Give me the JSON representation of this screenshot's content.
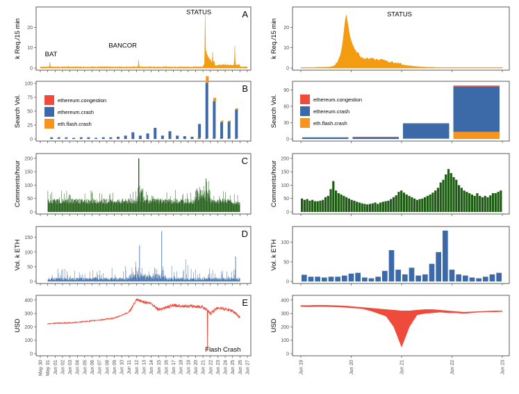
{
  "colors": {
    "status": "#F39C12",
    "congestion": "#EF4B3C",
    "crash": "#3C6AA8",
    "flash": "#F7941D",
    "comments": "#1E5C14",
    "volume": "#3C6AA8",
    "usd": "#EF4B3C",
    "frame": "#333333"
  },
  "left_x_ticks": [
    "May 30",
    "May 31",
    "Jun 01",
    "Jun 02",
    "Jun 03",
    "Jun 04",
    "Jun 05",
    "Jun 06",
    "Jun 07",
    "Jun 08",
    "Jun 09",
    "Jun 10",
    "Jun 11",
    "Jun 12",
    "Jun 13",
    "Jun 14",
    "Jun 15",
    "Jun 16",
    "Jun 17",
    "Jun 18",
    "Jun 19",
    "Jun 20",
    "Jun 21",
    "Jun 22",
    "Jun 23",
    "Jun 24",
    "Jun 25",
    "Jun 26",
    "Jun 27"
  ],
  "right_x_ticks": [
    "Jun 19",
    "Jun 20",
    "Jun 21",
    "Jun 22",
    "Jun 23"
  ],
  "chart_data": [
    {
      "id": "A-left",
      "type": "area",
      "panel_label": "A",
      "ylabel": "k Req./15 min",
      "ylim": [
        0,
        29
      ],
      "yticks": [
        0,
        10,
        20
      ],
      "x_range": [
        "May 30",
        "Jun 27"
      ],
      "spikes": [
        {
          "date": "May 31",
          "value": 3
        },
        {
          "date": "Jun 12",
          "value": 4
        },
        {
          "date": "Jun 21",
          "value": 25
        },
        {
          "date": "Jun 22",
          "value": 7
        },
        {
          "date": "Jun 25",
          "value": 10
        }
      ],
      "baseline": 0.4,
      "annotations": [
        {
          "text": "BAT",
          "date": "May 31",
          "value": 3
        },
        {
          "text": "BANCOR",
          "date": "Jun 12",
          "value": 4
        },
        {
          "text": "STATUS",
          "date": "Jun 21",
          "value": 25
        }
      ]
    },
    {
      "id": "A-right",
      "type": "area",
      "ylabel": "k Req./15 min",
      "ylim": [
        0,
        29
      ],
      "yticks": [
        0,
        10,
        20
      ],
      "x_range": [
        "Jun 19",
        "Jun 23"
      ],
      "series": [
        {
          "values": [
            0.3,
            0.3,
            0.3,
            0.3,
            0.4,
            0.4,
            0.5,
            0.5,
            1,
            3,
            9,
            27,
            15,
            9,
            7,
            5,
            4.5,
            5,
            4.5,
            4,
            4.5,
            3.5,
            3,
            2.5,
            2,
            1.5,
            1.2,
            1,
            0.8,
            0.6,
            0.5,
            0.4,
            0.4,
            0.3,
            0.3,
            0.3,
            0.3,
            0.3,
            0.3,
            0.3,
            0.3,
            0.3,
            0.3,
            0.3,
            0.3,
            0.3,
            0.3,
            0.3,
            0.3,
            0.3
          ]
        }
      ],
      "annotations": [
        {
          "text": "STATUS",
          "date": "Jun 20 09:00",
          "value": 25
        }
      ]
    },
    {
      "id": "B-left",
      "type": "bar",
      "panel_label": "B",
      "ylabel": "Search Vol.",
      "ylim": [
        0,
        100
      ],
      "yticks": [
        0,
        25,
        50,
        75,
        100
      ],
      "legend": [
        "ethereum.congestion",
        "ethereum.crash",
        "eth.flash.crash"
      ],
      "legend_position": "left",
      "x": [
        "May 31",
        "Jun 01",
        "Jun 02",
        "Jun 03",
        "Jun 04",
        "Jun 05",
        "Jun 06",
        "Jun 07",
        "Jun 08",
        "Jun 09",
        "Jun 10",
        "Jun 11",
        "Jun 12",
        "Jun 13",
        "Jun 14",
        "Jun 15",
        "Jun 16",
        "Jun 17",
        "Jun 18",
        "Jun 19",
        "Jun 20",
        "Jun 21",
        "Jun 22",
        "Jun 23",
        "Jun 24",
        "Jun 25"
      ],
      "series": [
        {
          "name": "ethereum.congestion",
          "values": [
            0,
            1,
            1,
            0,
            0,
            0,
            0,
            0,
            0,
            0,
            0,
            0,
            0,
            0,
            0,
            0,
            0,
            0,
            0,
            0,
            2,
            1,
            1,
            1,
            1,
            1
          ]
        },
        {
          "name": "ethereum.crash",
          "values": [
            3,
            2,
            2,
            2,
            3,
            3,
            2,
            3,
            3,
            4,
            6,
            12,
            6,
            10,
            20,
            6,
            14,
            6,
            5,
            4,
            25,
            100,
            67,
            29,
            30,
            52
          ]
        },
        {
          "name": "eth.flash.crash",
          "values": [
            0,
            0,
            0,
            0,
            0,
            0,
            0,
            0,
            0,
            0,
            0,
            0,
            0,
            0,
            0,
            0,
            0,
            0,
            0,
            0,
            0,
            12,
            6,
            3,
            2,
            2
          ]
        }
      ]
    },
    {
      "id": "B-right",
      "type": "bar",
      "ylabel": "Search Vol.",
      "ylim": [
        0,
        102
      ],
      "yticks": [
        0,
        30,
        60,
        90
      ],
      "legend": [
        "ethereum.congestion",
        "ethereum.crash",
        "eth.flash.crash"
      ],
      "legend_position": "top-left",
      "x": [
        "Jun 19",
        "Jun 20",
        "Jun 21",
        "Jun 22"
      ],
      "series": [
        {
          "name": "ethereum.congestion",
          "values": [
            0,
            1,
            1,
            2
          ]
        },
        {
          "name": "ethereum.crash",
          "values": [
            3,
            3,
            27,
            83
          ]
        },
        {
          "name": "eth.flash.crash",
          "values": [
            0,
            0,
            1,
            13
          ]
        }
      ]
    },
    {
      "id": "C-left",
      "type": "bar",
      "panel_label": "C",
      "ylabel": "Comments/hour",
      "ylim": [
        0,
        210
      ],
      "yticks": [
        0,
        50,
        100,
        150,
        200
      ],
      "x_range": [
        "May 31",
        "Jun 26"
      ],
      "hourly": true,
      "base_level": 30,
      "peaks": [
        {
          "date": "Jun 12",
          "value": 200
        },
        {
          "date": "Jun 21",
          "value": 125
        }
      ]
    },
    {
      "id": "C-right",
      "type": "bar",
      "ylabel": "Comments/hour",
      "ylim": [
        0,
        210
      ],
      "yticks": [
        0,
        50,
        100,
        150,
        200
      ],
      "x_range": [
        "Jun 19",
        "Jun 23"
      ],
      "series": [
        {
          "values": [
            50,
            45,
            48,
            42,
            45,
            40,
            40,
            42,
            45,
            55,
            60,
            85,
            115,
            80,
            70,
            65,
            60,
            55,
            50,
            45,
            42,
            38,
            35,
            32,
            30,
            28,
            30,
            32,
            35,
            30,
            35,
            38,
            40,
            42,
            48,
            55,
            62,
            75,
            80,
            72,
            65,
            60,
            55,
            50,
            45,
            48,
            50,
            55,
            60,
            65,
            72,
            80,
            90,
            110,
            120,
            140,
            160,
            145,
            130,
            120,
            100,
            90,
            80,
            75,
            70,
            65,
            60,
            70,
            60,
            55,
            60,
            55,
            62,
            70,
            70,
            75,
            80
          ]
        }
      ]
    },
    {
      "id": "D-left",
      "type": "bar",
      "panel_label": "D",
      "ylabel": "Vol. k ETH",
      "ylim": [
        0,
        180
      ],
      "yticks": [
        0,
        50,
        100,
        150
      ],
      "x_range": [
        "May 31",
        "Jun 26"
      ],
      "hourly": true,
      "peaks": [
        {
          "date": "Jun 15",
          "value": 170
        },
        {
          "date": "Jun 12",
          "value": 115
        },
        {
          "date": "Jun 25",
          "value": 85
        }
      ]
    },
    {
      "id": "D-right",
      "type": "bar",
      "ylabel": "Vol. k ETH",
      "ylim": [
        0,
        135
      ],
      "yticks": [
        0,
        50,
        100
      ],
      "x_range": [
        "Jun 19",
        "Jun 23"
      ],
      "series": [
        {
          "values": [
            17,
            12,
            12,
            10,
            12,
            12,
            15,
            20,
            22,
            10,
            8,
            12,
            27,
            80,
            30,
            18,
            35,
            15,
            18,
            45,
            75,
            130,
            30,
            18,
            15,
            10,
            8,
            12,
            18,
            22
          ]
        }
      ]
    },
    {
      "id": "E-left",
      "type": "line",
      "panel_label": "E",
      "ylabel": "USD",
      "ylim": [
        0,
        420
      ],
      "yticks": [
        0,
        100,
        200,
        300,
        400
      ],
      "x": [
        "May 31",
        "Jun 03",
        "Jun 06",
        "Jun 09",
        "Jun 11",
        "Jun 12",
        "Jun 14",
        "Jun 15",
        "Jun 17",
        "Jun 19",
        "Jun 21",
        "Jun 22",
        "Jun 23",
        "Jun 25",
        "Jun 26"
      ],
      "values": [
        225,
        230,
        245,
        265,
        310,
        400,
        375,
        330,
        360,
        355,
        350,
        300,
        345,
        320,
        270
      ],
      "annotations": [
        {
          "text": "Flash Crash",
          "date": "Jun 21",
          "value": 20
        }
      ]
    },
    {
      "id": "E-right",
      "type": "area",
      "ylabel": "USD",
      "ylim": [
        0,
        420
      ],
      "yticks": [
        0,
        100,
        200,
        300,
        400
      ],
      "x_range": [
        "Jun 19",
        "Jun 23"
      ],
      "series": [
        {
          "name": "high",
          "values": [
            360,
            360,
            362,
            362,
            360,
            358,
            355,
            350,
            345,
            340,
            335,
            330,
            325,
            320,
            320,
            325,
            330,
            330,
            325,
            320,
            315,
            310,
            312,
            315,
            318,
            320,
            320
          ]
        },
        {
          "name": "low",
          "values": [
            352,
            350,
            352,
            352,
            350,
            348,
            345,
            340,
            335,
            320,
            300,
            280,
            200,
            50,
            200,
            290,
            300,
            305,
            310,
            305,
            305,
            300,
            305,
            310,
            312,
            312,
            315
          ]
        }
      ]
    }
  ]
}
